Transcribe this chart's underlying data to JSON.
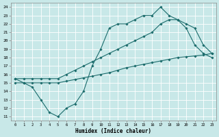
{
  "bg_color": "#c8e8e8",
  "grid_color": "#ffffff",
  "line_color": "#1a6b6b",
  "xlabel": "Humidex (Indice chaleur)",
  "xlim": [
    -0.5,
    23.5
  ],
  "ylim": [
    10.5,
    24.5
  ],
  "yticks": [
    11,
    12,
    13,
    14,
    15,
    16,
    17,
    18,
    19,
    20,
    21,
    22,
    23,
    24
  ],
  "xticks": [
    0,
    1,
    2,
    3,
    4,
    5,
    6,
    7,
    8,
    9,
    10,
    11,
    12,
    13,
    14,
    15,
    16,
    17,
    18,
    19,
    20,
    21,
    22,
    23
  ],
  "curve_zigzag_x": [
    0,
    1,
    2,
    3,
    4,
    5,
    6,
    7,
    8,
    9,
    10,
    11,
    12,
    13,
    14,
    15,
    16,
    17,
    18,
    19,
    20,
    21,
    22,
    23
  ],
  "curve_zigzag_y": [
    15.5,
    15,
    14.5,
    13,
    11.5,
    11,
    12,
    12.5,
    14,
    17,
    19,
    21.5,
    22,
    22,
    22.5,
    23,
    23,
    24,
    23,
    22.5,
    21.5,
    19.5,
    18.5,
    18
  ],
  "curve_upper_x": [
    0,
    1,
    2,
    3,
    4,
    5,
    6,
    7,
    8,
    9,
    10,
    11,
    12,
    13,
    14,
    15,
    16,
    17,
    18,
    19,
    20,
    21,
    22,
    23
  ],
  "curve_upper_y": [
    15.5,
    15.5,
    15.5,
    15.5,
    15.5,
    15.5,
    16,
    16.5,
    17,
    17.5,
    18,
    18.5,
    19,
    19.5,
    20,
    20.5,
    21,
    22,
    22.5,
    22.5,
    22,
    21.5,
    19.5,
    18.5
  ],
  "curve_linear_x": [
    0,
    1,
    2,
    3,
    4,
    5,
    6,
    7,
    8,
    9,
    10,
    11,
    12,
    13,
    14,
    15,
    16,
    17,
    18,
    19,
    20,
    21,
    22,
    23
  ],
  "curve_linear_y": [
    15,
    15,
    15,
    15,
    15,
    15,
    15.2,
    15.4,
    15.6,
    15.8,
    16,
    16.2,
    16.5,
    16.8,
    17,
    17.2,
    17.4,
    17.6,
    17.8,
    18,
    18.1,
    18.2,
    18.3,
    18.5
  ],
  "figwidth": 3.2,
  "figheight": 2.0,
  "dpi": 100
}
